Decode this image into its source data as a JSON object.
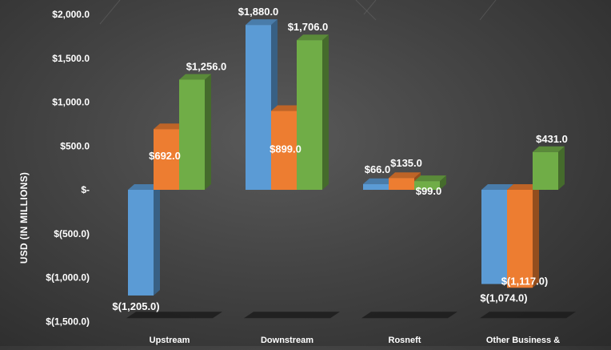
{
  "chart_data": {
    "type": "bar",
    "style": "3d-clustered",
    "title": "",
    "xlabel": "",
    "ylabel": "USD (IN MILLIONS)",
    "ylim": [
      -1500,
      2000
    ],
    "yticks": [
      2000,
      1500,
      1000,
      500,
      0,
      -500,
      -1000,
      -1500
    ],
    "ytick_labels": [
      "$2,000.0",
      "$1,500.0",
      "$1,000.0",
      "$500.0",
      "$-",
      "$(500.0)",
      "$(1,000.0)",
      "$(1,500.0)"
    ],
    "grid": false,
    "legend": "none",
    "categories": [
      "Upstream",
      "Downstream",
      "Rosneft",
      "Other Business &"
    ],
    "series": [
      {
        "color": "#5b9bd5",
        "values": [
          -1205,
          1880,
          66,
          -1074
        ],
        "labels": [
          "$(1,205.0)",
          "$1,880.0",
          "$66.0",
          "$(1,074.0)"
        ]
      },
      {
        "color": "#ed7d31",
        "values": [
          692,
          899,
          135,
          -1117
        ],
        "labels": [
          "$692.0",
          "$899.0",
          "$135.0",
          "$(1,117.0)"
        ]
      },
      {
        "color": "#70ad47",
        "values": [
          1256,
          1706,
          99,
          431
        ],
        "labels": [
          "$1,256.0",
          "$1,706.0",
          "$99.0",
          "$431.0"
        ]
      }
    ]
  }
}
